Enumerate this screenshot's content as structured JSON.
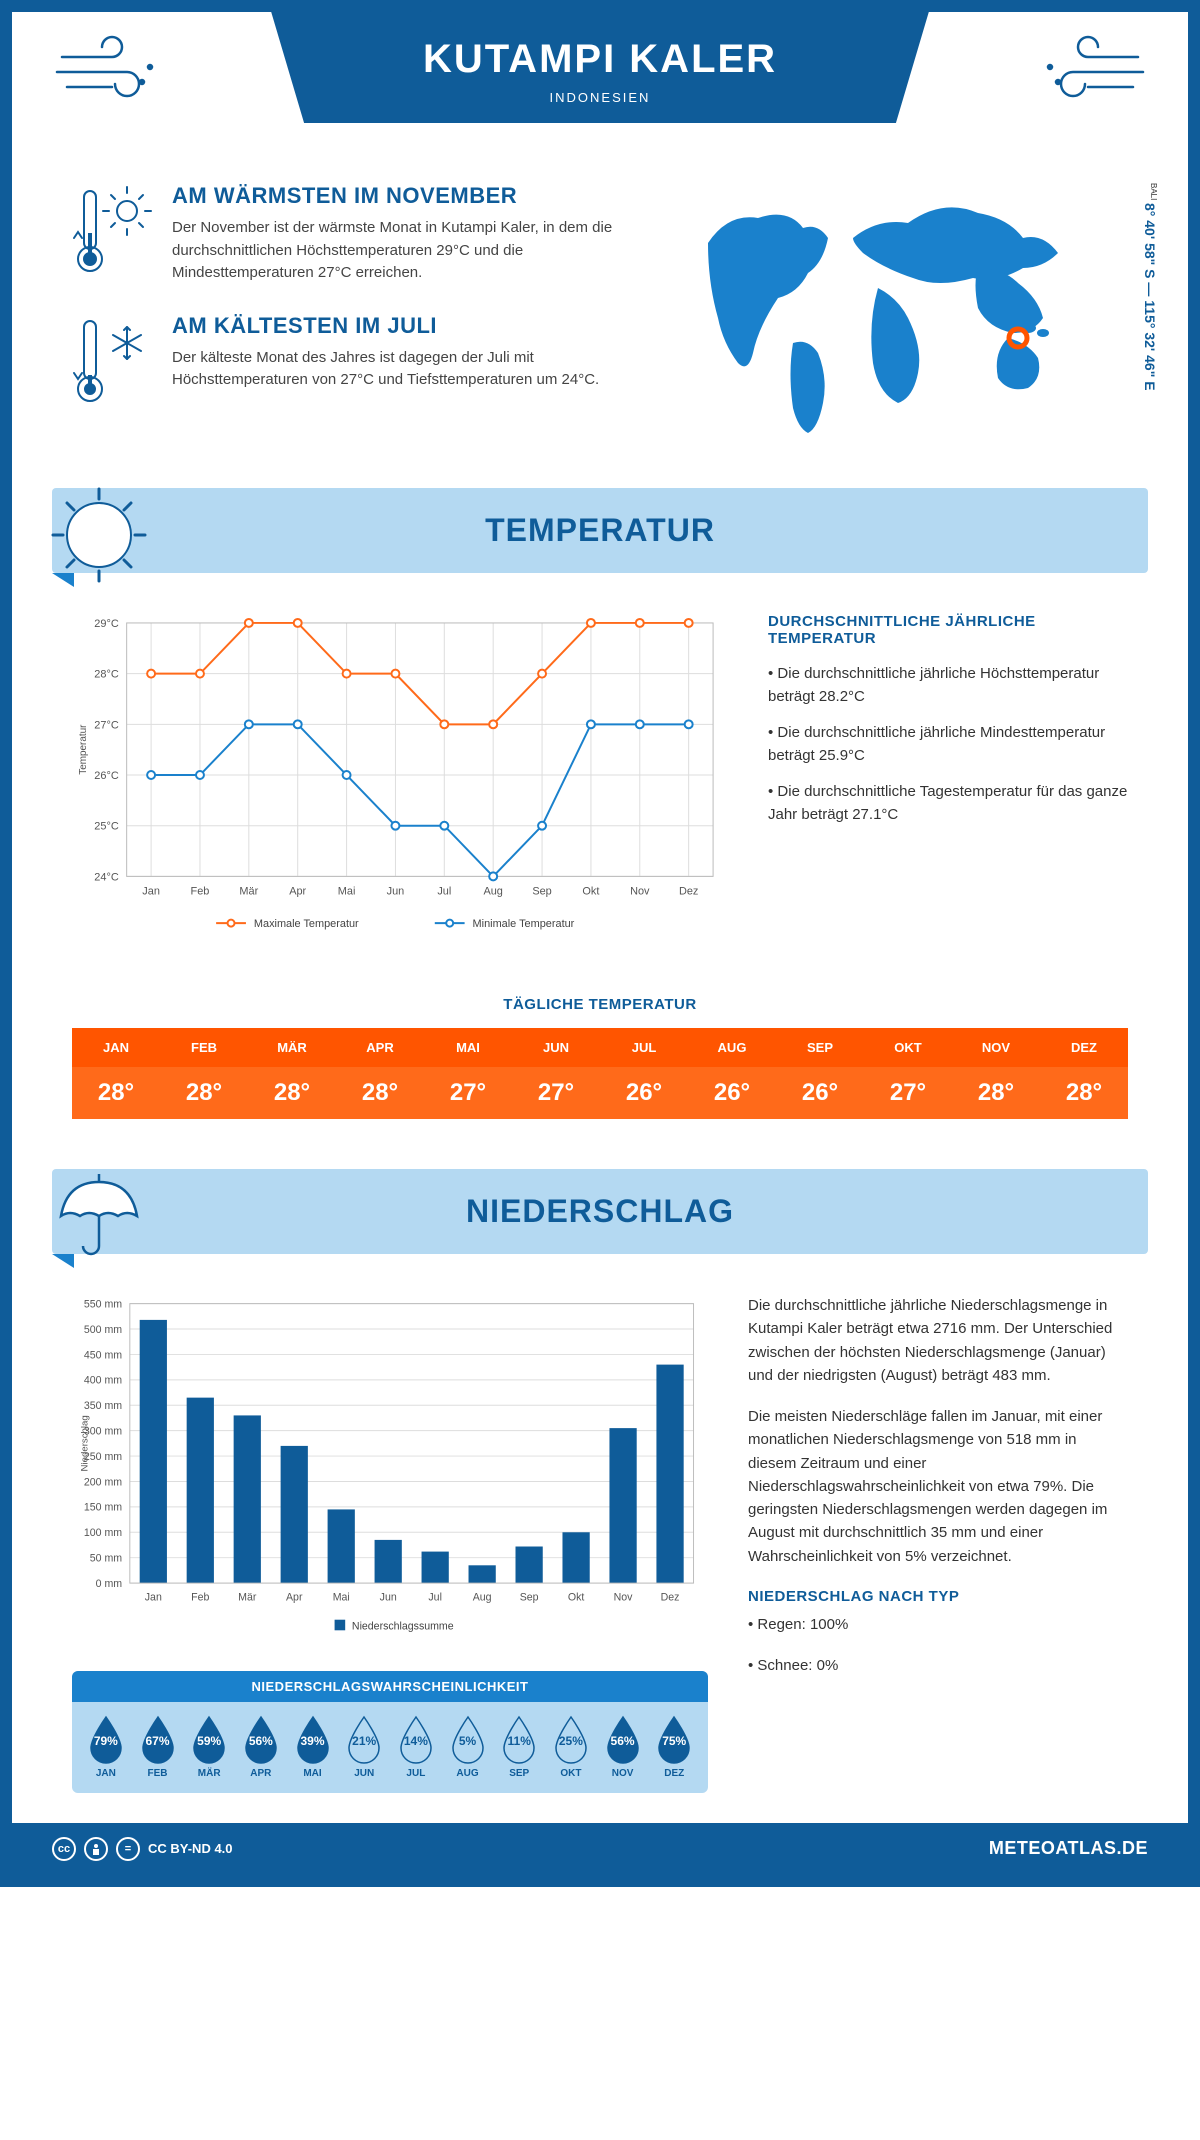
{
  "header": {
    "title": "KUTAMPI KALER",
    "country": "INDONESIEN",
    "coords": "8° 40' 58\" S — 115° 32' 46\" E",
    "region": "BALI"
  },
  "warmest": {
    "title": "AM WÄRMSTEN IM NOVEMBER",
    "text": "Der November ist der wärmste Monat in Kutampi Kaler, in dem die durchschnittlichen Höchsttemperaturen 29°C und die Mindesttemperaturen 27°C erreichen."
  },
  "coldest": {
    "title": "AM KÄLTESTEN IM JULI",
    "text": "Der kälteste Monat des Jahres ist dagegen der Juli mit Höchsttemperaturen von 27°C und Tiefsttemperaturen um 24°C."
  },
  "colors": {
    "primary": "#0f5c99",
    "lightBlue": "#b4d9f2",
    "midBlue": "#1a81cc",
    "orange": "#ff5500",
    "orangeLine": "#ff6a1a",
    "blueLine": "#1a81cc",
    "grid": "#dddddd",
    "barFill": "#0f5c99"
  },
  "months": [
    "Jan",
    "Feb",
    "Mär",
    "Apr",
    "Mai",
    "Jun",
    "Jul",
    "Aug",
    "Sep",
    "Okt",
    "Nov",
    "Dez"
  ],
  "monthsUpper": [
    "JAN",
    "FEB",
    "MÄR",
    "APR",
    "MAI",
    "JUN",
    "JUL",
    "AUG",
    "SEP",
    "OKT",
    "NOV",
    "DEZ"
  ],
  "temp": {
    "sectionTitle": "TEMPERATUR",
    "yTicks": [
      24,
      25,
      26,
      27,
      28,
      29
    ],
    "yTickSuffix": "°C",
    "ylim": [
      24,
      29
    ],
    "yAxisLabel": "Temperatur",
    "maxSeries": {
      "label": "Maximale Temperatur",
      "color": "#ff6a1a",
      "values": [
        28,
        28,
        29,
        29,
        28,
        28,
        27,
        27,
        28,
        29,
        29,
        29
      ]
    },
    "minSeries": {
      "label": "Minimale Temperatur",
      "color": "#1a81cc",
      "values": [
        26,
        26,
        27,
        27,
        26,
        25,
        25,
        24,
        25,
        27,
        27,
        27
      ]
    },
    "infoTitle": "DURCHSCHNITTLICHE JÄHRLICHE TEMPERATUR",
    "bullets": [
      "• Die durchschnittliche jährliche Höchsttemperatur beträgt 28.2°C",
      "• Die durchschnittliche jährliche Mindesttemperatur beträgt 25.9°C",
      "• Die durchschnittliche Tagestemperatur für das ganze Jahr beträgt 27.1°C"
    ],
    "dailyTitle": "TÄGLICHE TEMPERATUR",
    "daily": [
      "28°",
      "28°",
      "28°",
      "28°",
      "27°",
      "27°",
      "26°",
      "26°",
      "26°",
      "27°",
      "28°",
      "28°"
    ]
  },
  "precip": {
    "sectionTitle": "NIEDERSCHLAG",
    "yTicks": [
      0,
      50,
      100,
      150,
      200,
      250,
      300,
      350,
      400,
      450,
      500,
      550
    ],
    "yTickSuffix": " mm",
    "ylim": [
      0,
      550
    ],
    "yAxisLabel": "Niederschlag",
    "values": [
      518,
      365,
      330,
      270,
      145,
      85,
      62,
      35,
      72,
      100,
      305,
      430
    ],
    "legendLabel": "Niederschlagssumme",
    "paragraphs": [
      "Die durchschnittliche jährliche Niederschlagsmenge in Kutampi Kaler beträgt etwa 2716 mm. Der Unterschied zwischen der höchsten Niederschlagsmenge (Januar) und der niedrigsten (August) beträgt 483 mm.",
      "Die meisten Niederschläge fallen im Januar, mit einer monatlichen Niederschlagsmenge von 518 mm in diesem Zeitraum und einer Niederschlagswahrscheinlichkeit von etwa 79%. Die geringsten Niederschlagsmengen werden dagegen im August mit durchschnittlich 35 mm und einer Wahrscheinlichkeit von 5% verzeichnet."
    ],
    "byTypeTitle": "NIEDERSCHLAG NACH TYP",
    "byType": [
      "• Regen: 100%",
      "• Schnee: 0%"
    ],
    "probTitle": "NIEDERSCHLAGSWAHRSCHEINLICHKEIT",
    "probs": [
      79,
      67,
      59,
      56,
      39,
      21,
      14,
      5,
      11,
      25,
      56,
      75
    ]
  },
  "footer": {
    "license": "CC BY-ND 4.0",
    "brand": "METEOATLAS.DE"
  }
}
